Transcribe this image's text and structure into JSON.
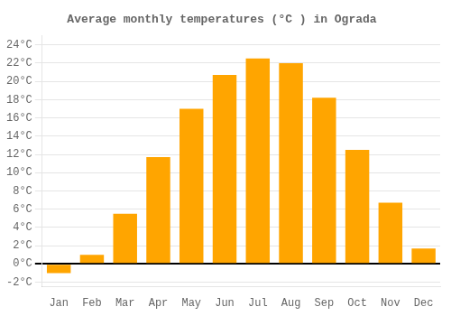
{
  "chart_data": {
    "type": "bar",
    "title": "Average monthly temperatures (°C ) in Ograda",
    "categories": [
      "Jan",
      "Feb",
      "Mar",
      "Apr",
      "May",
      "Jun",
      "Jul",
      "Aug",
      "Sep",
      "Oct",
      "Nov",
      "Dec"
    ],
    "values": [
      -1.0,
      1.0,
      5.5,
      11.7,
      17.0,
      20.7,
      22.5,
      22.0,
      18.2,
      12.5,
      6.7,
      1.7
    ],
    "color": "#FFA500",
    "ylim": [
      -2.5,
      25
    ],
    "yticks": [
      {
        "value": -2,
        "label": "-2°C"
      },
      {
        "value": 0,
        "label": "0°C"
      },
      {
        "value": 2,
        "label": "2°C"
      },
      {
        "value": 4,
        "label": "4°C"
      },
      {
        "value": 6,
        "label": "6°C"
      },
      {
        "value": 8,
        "label": "8°C"
      },
      {
        "value": 10,
        "label": "10°C"
      },
      {
        "value": 12,
        "label": "12°C"
      },
      {
        "value": 14,
        "label": "14°C"
      },
      {
        "value": 16,
        "label": "16°C"
      },
      {
        "value": 18,
        "label": "18°C"
      },
      {
        "value": 20,
        "label": "20°C"
      },
      {
        "value": 22,
        "label": "22°C"
      },
      {
        "value": 24,
        "label": "24°C"
      }
    ],
    "grid": true
  }
}
